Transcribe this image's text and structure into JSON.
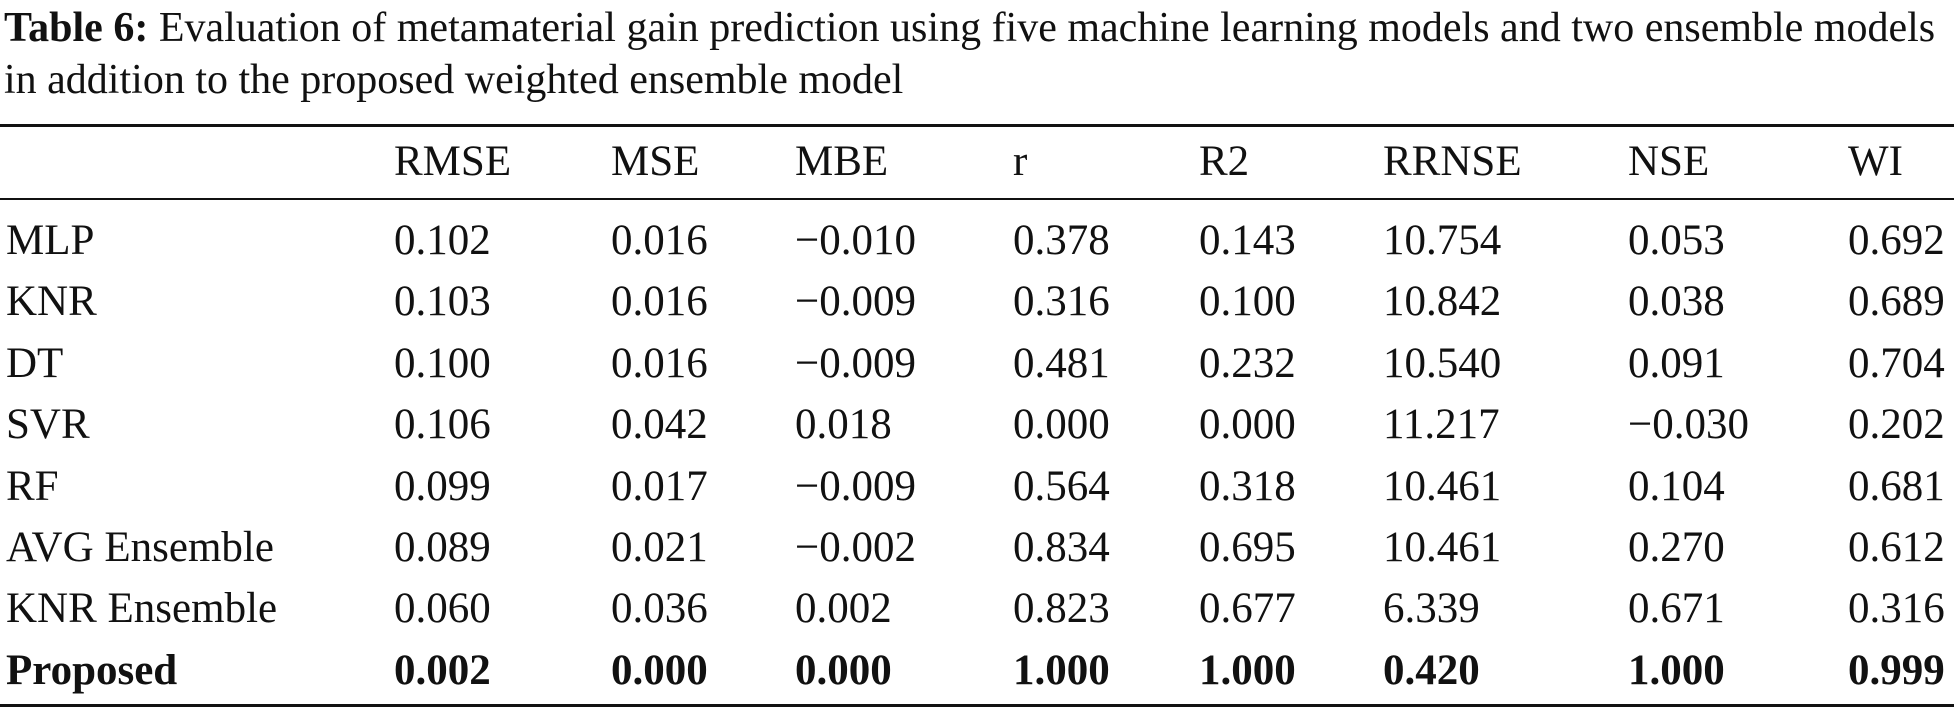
{
  "caption": {
    "label": "Table 6:",
    "text": "Evaluation of metamaterial gain prediction using five machine learning models and two ensemble models in addition to the proposed weighted ensemble model"
  },
  "table": {
    "header": [
      "RMSE",
      "MSE",
      "MBE",
      "r",
      "R2",
      "RRNSE",
      "NSE",
      "WI"
    ],
    "rows": [
      [
        "MLP",
        "0.102",
        "0.016",
        "−0.010",
        "0.378",
        "0.143",
        "10.754",
        "0.053",
        "0.692"
      ],
      [
        "KNR",
        "0.103",
        "0.016",
        "−0.009",
        "0.316",
        "0.100",
        "10.842",
        "0.038",
        "0.689"
      ],
      [
        "DT",
        "0.100",
        "0.016",
        "−0.009",
        "0.481",
        "0.232",
        "10.540",
        "0.091",
        "0.704"
      ],
      [
        "SVR",
        "0.106",
        "0.042",
        "0.018",
        "0.000",
        "0.000",
        "11.217",
        "−0.030",
        "0.202"
      ],
      [
        "RF",
        "0.099",
        "0.017",
        "−0.009",
        "0.564",
        "0.318",
        "10.461",
        "0.104",
        "0.681"
      ],
      [
        "AVG Ensemble",
        "0.089",
        "0.021",
        "−0.002",
        "0.834",
        "0.695",
        "10.461",
        "0.270",
        "0.612"
      ],
      [
        "KNR Ensemble",
        "0.060",
        "0.036",
        "0.002",
        "0.823",
        "0.677",
        "6.339",
        "0.671",
        "0.316"
      ],
      [
        "Proposed",
        "0.002",
        "0.000",
        "0.000",
        "1.000",
        "1.000",
        "0.420",
        "1.000",
        "0.999"
      ]
    ]
  }
}
